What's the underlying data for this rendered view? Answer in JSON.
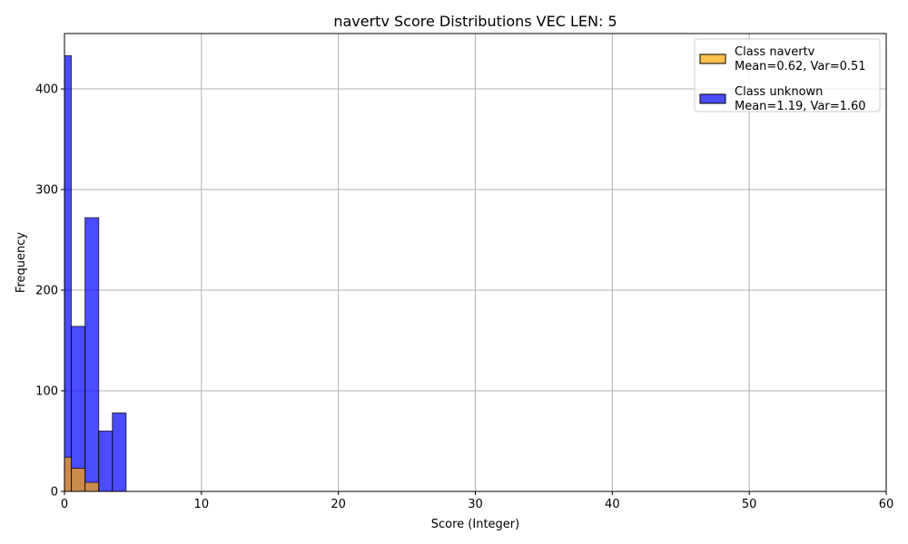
{
  "chart_data": {
    "type": "histogram",
    "title": "navertv Score Distributions VEC LEN: 5",
    "xlabel": "Score (Integer)",
    "ylabel": "Frequency",
    "xlim": [
      0,
      60
    ],
    "ylim": [
      0,
      455
    ],
    "xticks": [
      0,
      10,
      20,
      30,
      40,
      50,
      60
    ],
    "yticks": [
      0,
      100,
      200,
      300,
      400
    ],
    "grid": true,
    "legend_position": "top-right",
    "bins": [
      [
        0,
        0.5
      ],
      [
        0.5,
        1.5
      ],
      [
        1.5,
        2.5
      ],
      [
        2.5,
        3.5
      ],
      [
        3.5,
        4.5
      ]
    ],
    "series": [
      {
        "name": "Class navertv",
        "legend_label_line1": "Class navertv",
        "legend_label_line2": "Mean=0.62, Var=0.51",
        "color": "#FFA500",
        "alpha": 0.7,
        "values": [
          34,
          23,
          9,
          0,
          0
        ]
      },
      {
        "name": "Class unknown",
        "legend_label_line1": "Class unknown",
        "legend_label_line2": "Mean=1.19, Var=1.60",
        "color": "#0000FF",
        "alpha": 0.7,
        "values": [
          433,
          164,
          272,
          60,
          78
        ]
      }
    ]
  }
}
